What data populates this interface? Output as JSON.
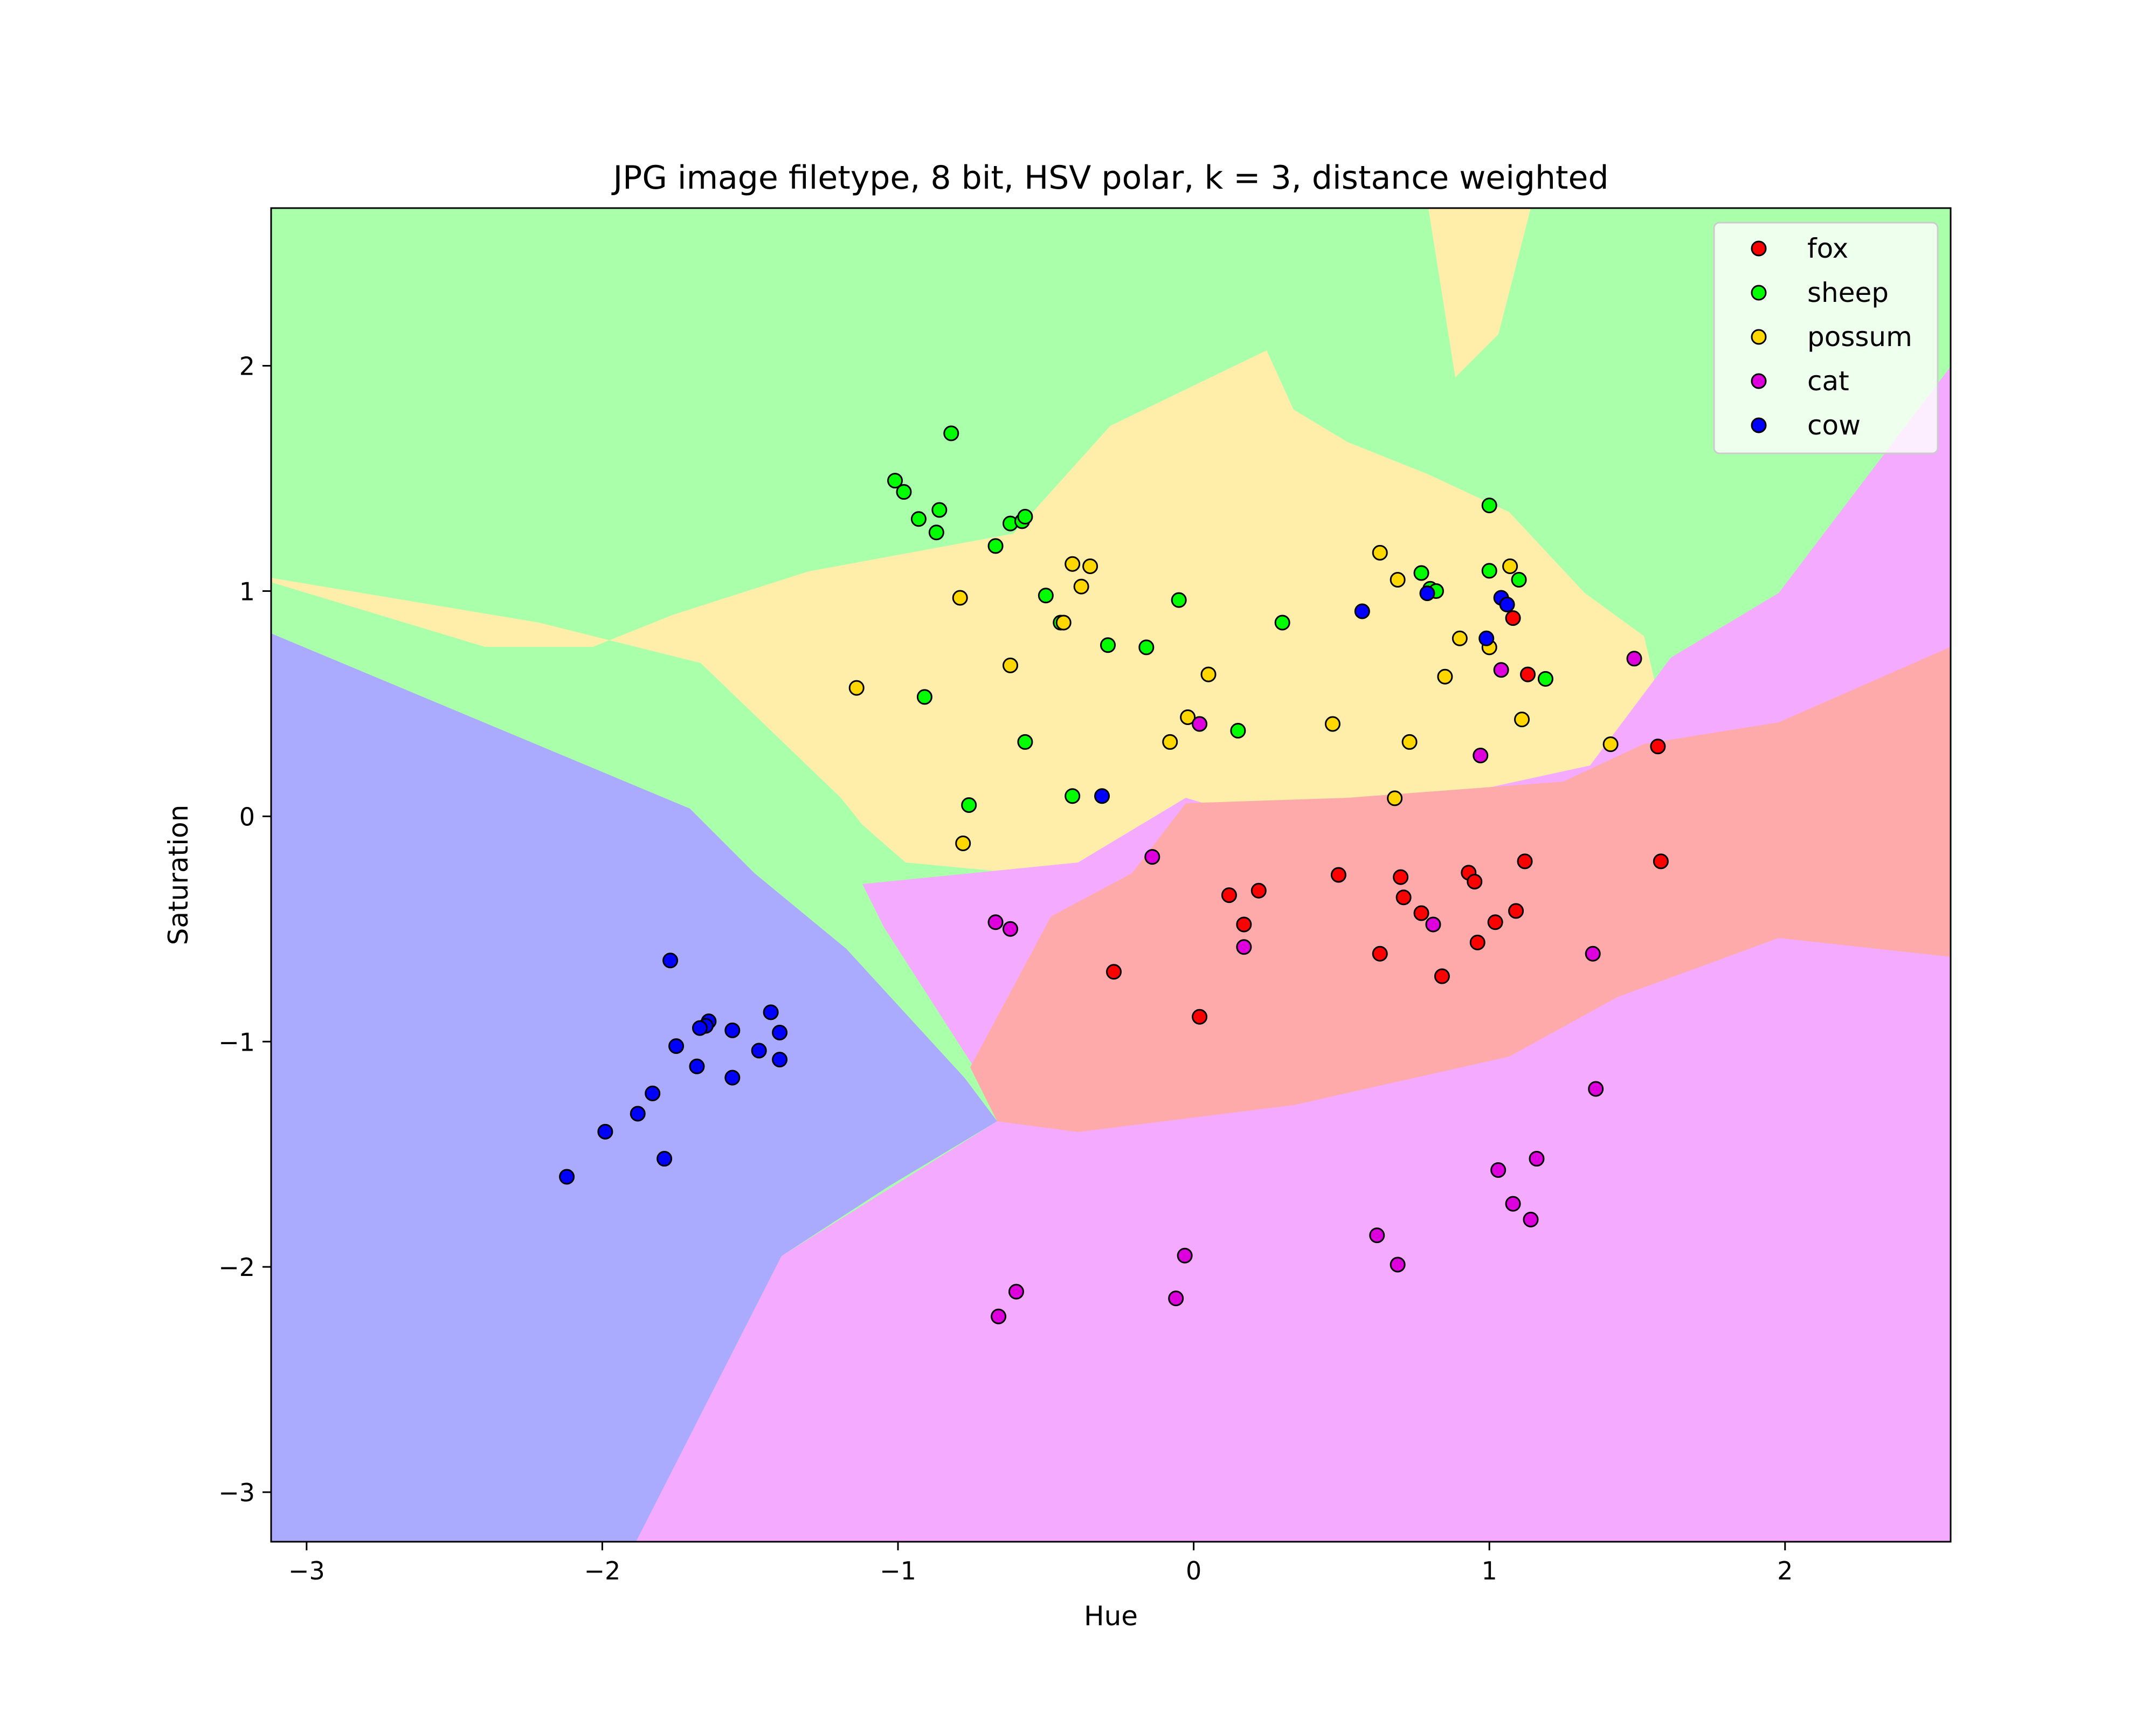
{
  "chart_data": {
    "type": "scatter",
    "title": "JPG image filetype, 8 bit, HSV polar, k = 3, distance weighted",
    "xlabel": "Hue",
    "ylabel": "Saturation",
    "xlim": [
      -3.12,
      2.56
    ],
    "ylim": [
      -3.22,
      2.7
    ],
    "xticks": [
      -3,
      -2,
      -1,
      0,
      1,
      2
    ],
    "yticks": [
      -3,
      -2,
      -1,
      0,
      1,
      2
    ],
    "xtick_labels": [
      "−3",
      "−2",
      "−1",
      "0",
      "1",
      "2"
    ],
    "ytick_labels": [
      "−3",
      "−2",
      "−1",
      "0",
      "1",
      "2"
    ],
    "grid": false,
    "legend_position": "top-right",
    "background_regions": "decision regions of a k-nearest-neighbour classifier",
    "series": [
      {
        "name": "fox",
        "color": "#ff0000",
        "region_color": "#ffaaaa",
        "points": [
          [
            0.12,
            -0.35
          ],
          [
            0.17,
            -0.48
          ],
          [
            0.22,
            -0.33
          ],
          [
            0.49,
            -0.26
          ],
          [
            0.63,
            -0.61
          ],
          [
            0.7,
            -0.27
          ],
          [
            0.71,
            -0.36
          ],
          [
            0.77,
            -0.43
          ],
          [
            0.84,
            -0.71
          ],
          [
            0.93,
            -0.25
          ],
          [
            0.95,
            -0.29
          ],
          [
            0.96,
            -0.56
          ],
          [
            1.02,
            -0.47
          ],
          [
            1.09,
            -0.42
          ],
          [
            1.12,
            -0.2
          ],
          [
            1.58,
            -0.2
          ],
          [
            1.57,
            0.31
          ],
          [
            1.13,
            0.63
          ],
          [
            1.08,
            0.88
          ],
          [
            -0.27,
            -0.69
          ],
          [
            0.02,
            -0.89
          ]
        ]
      },
      {
        "name": "sheep",
        "color": "#00ff00",
        "region_color": "#aaffaa",
        "points": [
          [
            -1.01,
            1.49
          ],
          [
            -0.98,
            1.44
          ],
          [
            -0.93,
            1.32
          ],
          [
            -0.87,
            1.26
          ],
          [
            -0.86,
            1.36
          ],
          [
            -0.82,
            1.7
          ],
          [
            -0.67,
            1.2
          ],
          [
            -0.62,
            1.3
          ],
          [
            -0.58,
            1.31
          ],
          [
            -0.57,
            1.33
          ],
          [
            -0.5,
            0.98
          ],
          [
            -0.45,
            0.86
          ],
          [
            -0.29,
            0.76
          ],
          [
            -0.16,
            0.75
          ],
          [
            -0.05,
            0.96
          ],
          [
            0.3,
            0.86
          ],
          [
            0.15,
            0.38
          ],
          [
            -0.57,
            0.33
          ],
          [
            -0.41,
            0.09
          ],
          [
            -0.76,
            0.05
          ],
          [
            -0.91,
            0.53
          ],
          [
            0.77,
            1.08
          ],
          [
            0.8,
            1.01
          ],
          [
            0.82,
            1.0
          ],
          [
            1.0,
            1.09
          ],
          [
            1.0,
            1.38
          ],
          [
            1.1,
            1.05
          ],
          [
            1.19,
            0.61
          ]
        ]
      },
      {
        "name": "possum",
        "color": "#ffd700",
        "region_color": "#ffeeaa",
        "points": [
          [
            -1.14,
            0.57
          ],
          [
            -0.79,
            0.97
          ],
          [
            -0.78,
            -0.12
          ],
          [
            -0.62,
            0.67
          ],
          [
            -0.44,
            0.86
          ],
          [
            -0.41,
            1.12
          ],
          [
            -0.38,
            1.02
          ],
          [
            -0.35,
            1.11
          ],
          [
            -0.02,
            0.44
          ],
          [
            -0.08,
            0.33
          ],
          [
            0.05,
            0.63
          ],
          [
            0.47,
            0.41
          ],
          [
            0.63,
            1.17
          ],
          [
            0.69,
            1.05
          ],
          [
            0.68,
            0.08
          ],
          [
            0.73,
            0.33
          ],
          [
            0.85,
            0.62
          ],
          [
            0.9,
            0.79
          ],
          [
            1.0,
            0.75
          ],
          [
            1.07,
            1.11
          ],
          [
            1.11,
            0.43
          ],
          [
            1.41,
            0.32
          ]
        ]
      },
      {
        "name": "cat",
        "color": "#dd00dd",
        "region_color": "#f4aaff",
        "points": [
          [
            -0.67,
            -0.47
          ],
          [
            -0.62,
            -0.5
          ],
          [
            -0.14,
            -0.18
          ],
          [
            0.02,
            0.41
          ],
          [
            0.17,
            -0.58
          ],
          [
            0.81,
            -0.48
          ],
          [
            0.97,
            0.27
          ],
          [
            1.04,
            0.65
          ],
          [
            1.49,
            0.7
          ],
          [
            1.35,
            -0.61
          ],
          [
            1.36,
            -1.21
          ],
          [
            1.03,
            -1.57
          ],
          [
            1.16,
            -1.52
          ],
          [
            1.08,
            -1.72
          ],
          [
            1.14,
            -1.79
          ],
          [
            0.62,
            -1.86
          ],
          [
            0.69,
            -1.99
          ],
          [
            -0.03,
            -1.95
          ],
          [
            -0.06,
            -2.14
          ],
          [
            -0.6,
            -2.11
          ],
          [
            -0.66,
            -2.22
          ]
        ]
      },
      {
        "name": "cow",
        "color": "#0000ff",
        "region_color": "#aaaaff",
        "points": [
          [
            -1.77,
            -0.64
          ],
          [
            -1.64,
            -0.91
          ],
          [
            -1.65,
            -0.93
          ],
          [
            -1.67,
            -0.94
          ],
          [
            -1.75,
            -1.02
          ],
          [
            -1.68,
            -1.11
          ],
          [
            -1.56,
            -0.95
          ],
          [
            -1.56,
            -1.16
          ],
          [
            -1.43,
            -0.87
          ],
          [
            -1.4,
            -0.96
          ],
          [
            -1.47,
            -1.04
          ],
          [
            -1.4,
            -1.08
          ],
          [
            -1.83,
            -1.23
          ],
          [
            -1.88,
            -1.32
          ],
          [
            -1.79,
            -1.52
          ],
          [
            -1.99,
            -1.4
          ],
          [
            -2.12,
            -1.6
          ],
          [
            -0.31,
            0.09
          ],
          [
            0.57,
            0.91
          ],
          [
            0.79,
            0.99
          ],
          [
            1.04,
            0.97
          ],
          [
            1.06,
            0.94
          ],
          [
            0.99,
            0.79
          ]
        ]
      }
    ]
  }
}
